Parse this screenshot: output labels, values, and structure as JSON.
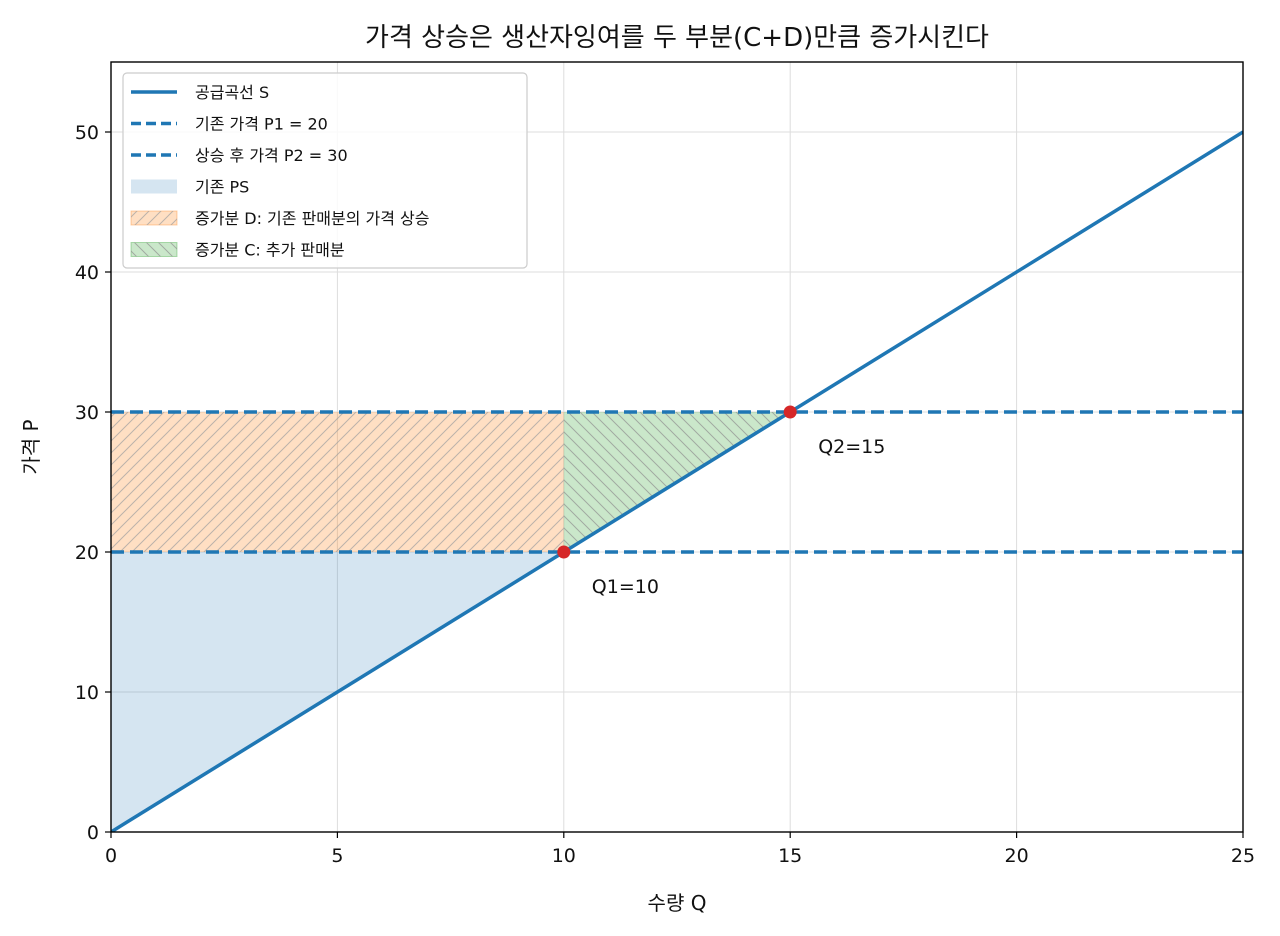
{
  "chart_data": {
    "type": "line",
    "title": "가격 상승은 생산자잉여를 두 부분(C+D)만큼 증가시킨다",
    "xlabel": "수량 Q",
    "ylabel": "가격 P",
    "xlim": [
      0,
      25
    ],
    "ylim": [
      0,
      55
    ],
    "xticks": [
      0,
      5,
      10,
      15,
      20,
      25
    ],
    "yticks": [
      0,
      10,
      20,
      30,
      40,
      50
    ],
    "grid": true,
    "legend_position": "top-left",
    "supply_curve": {
      "name": "공급곡선 S",
      "x": [
        0,
        25
      ],
      "y": [
        0,
        50
      ],
      "color": "#1f77b4"
    },
    "price_lines": [
      {
        "name": "기존 가격 P1 = 20",
        "y": 20,
        "color": "#1f77b4"
      },
      {
        "name": "상승 후 가격 P2 = 30",
        "y": 30,
        "color": "#1f77b4"
      }
    ],
    "areas": [
      {
        "name": "기존 PS",
        "polygon": [
          [
            0,
            0
          ],
          [
            10,
            20
          ],
          [
            0,
            20
          ]
        ],
        "color": "#1f77b4",
        "opacity": 0.19,
        "hatch": "none"
      },
      {
        "name": "증가분 D: 기존 판매분의 가격 상승",
        "polygon": [
          [
            0,
            20
          ],
          [
            10,
            20
          ],
          [
            10,
            30
          ],
          [
            0,
            30
          ]
        ],
        "color": "#ff7f0e",
        "opacity": 0.25,
        "hatch": "forward"
      },
      {
        "name": "증가분 C: 추가 판매분",
        "polygon": [
          [
            10,
            20
          ],
          [
            15,
            30
          ],
          [
            10,
            30
          ]
        ],
        "color": "#2ca02c",
        "opacity": 0.25,
        "hatch": "backward"
      }
    ],
    "points": [
      {
        "x": 10,
        "y": 20,
        "label": "Q1=10",
        "color": "#d62728"
      },
      {
        "x": 15,
        "y": 30,
        "label": "Q2=15",
        "color": "#d62728"
      }
    ]
  }
}
